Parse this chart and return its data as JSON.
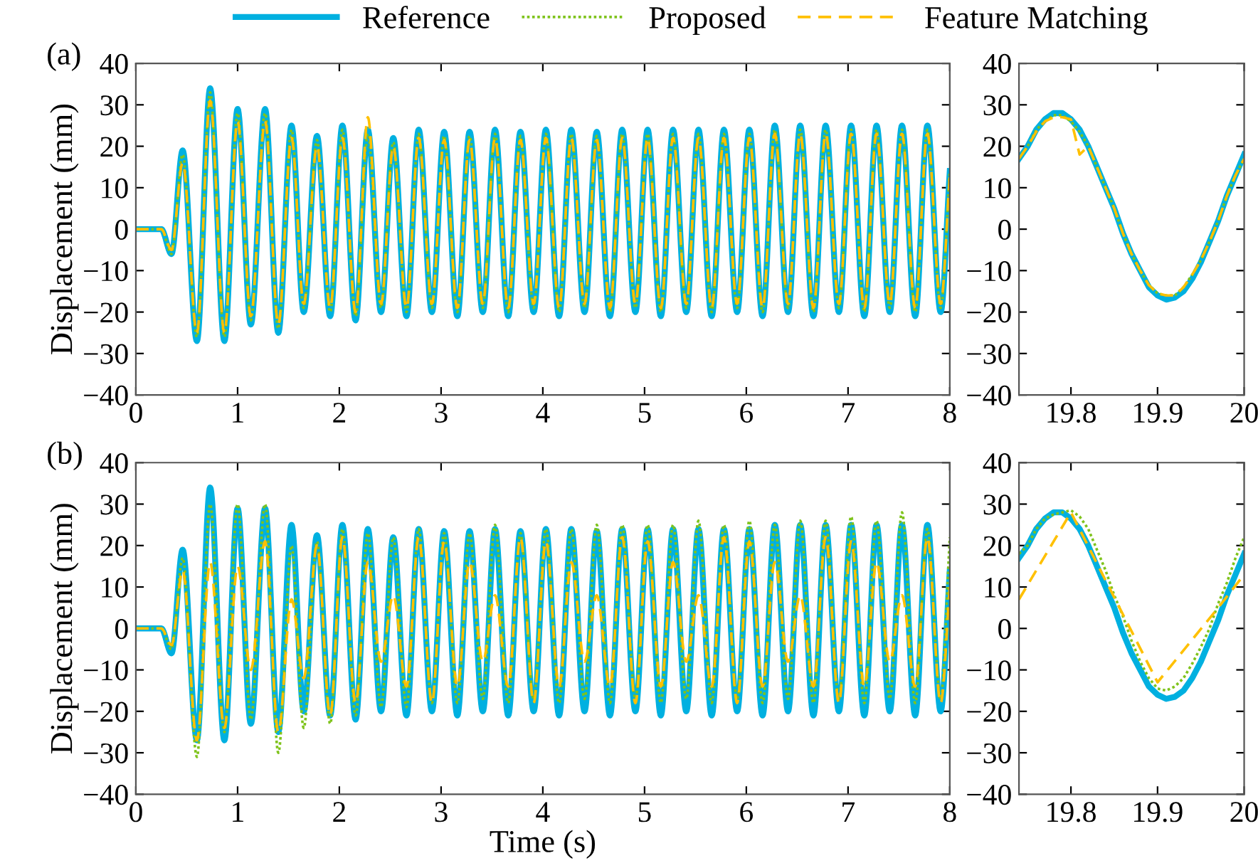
{
  "chart_data": [
    {
      "type": "line",
      "ylabel": "Displacement (mm)",
      "annotations": [
        "(a)"
      ],
      "legend": "top",
      "grid": false,
      "xlim": [
        0,
        8
      ],
      "xticks": [
        0,
        1,
        2,
        3,
        4,
        5,
        6,
        7,
        8
      ],
      "ylim": [
        -40,
        40
      ],
      "yticks": [
        -40,
        -30,
        -20,
        -10,
        0,
        10,
        20,
        30,
        40
      ],
      "x": [
        0,
        0.25,
        0.35,
        0.46,
        0.6,
        0.73,
        0.87,
        1.0,
        1.13,
        1.27,
        1.4,
        1.53,
        1.65,
        1.78,
        1.91,
        2.03,
        2.16,
        2.28,
        2.41,
        2.53,
        2.66,
        2.78,
        2.91,
        3.03,
        3.16,
        3.28,
        3.41,
        3.53,
        3.66,
        3.78,
        3.91,
        4.03,
        4.16,
        4.28,
        4.41,
        4.53,
        4.66,
        4.78,
        4.91,
        5.03,
        5.16,
        5.28,
        5.41,
        5.53,
        5.66,
        5.78,
        5.91,
        6.03,
        6.16,
        6.28,
        6.41,
        6.53,
        6.66,
        6.78,
        6.91,
        7.03,
        7.16,
        7.28,
        7.41,
        7.53,
        7.66,
        7.78,
        7.91,
        8.0
      ],
      "series": [
        {
          "name": "Reference",
          "color": "#00b0e0",
          "line_style": "solid",
          "values": [
            0,
            0,
            -6,
            19,
            -27,
            34,
            -27,
            29,
            -23,
            29,
            -25,
            25,
            -20,
            22.5,
            -21,
            25,
            -22,
            24,
            -20,
            22,
            -21,
            24,
            -20,
            23.5,
            -21,
            23.5,
            -20,
            24,
            -21,
            23.5,
            -20,
            24,
            -21,
            24,
            -20,
            23.5,
            -21,
            24,
            -20,
            24,
            -21,
            24,
            -20,
            24,
            -21,
            24,
            -20,
            24,
            -21,
            25,
            -20,
            25,
            -21,
            25,
            -20,
            25,
            -21,
            25,
            -20,
            25,
            -21,
            25,
            -20,
            14
          ]
        },
        {
          "name": "Proposed",
          "color": "#7fc31c",
          "line_style": "dotted",
          "values": [
            0,
            0,
            -6,
            18,
            -26,
            33,
            -26,
            28,
            -22,
            28,
            -24,
            24,
            -19,
            21.5,
            -20,
            24,
            -21,
            23,
            -19,
            21,
            -20,
            23,
            -19,
            22.5,
            -20,
            22.5,
            -19,
            23,
            -20,
            22.5,
            -19,
            23,
            -20,
            23,
            -19,
            22.5,
            -20,
            23,
            -19,
            23,
            -20,
            23,
            -19,
            23,
            -20,
            23,
            -19,
            23,
            -20,
            24,
            -19,
            24,
            -20,
            24,
            -19,
            24,
            -20,
            24,
            -19,
            24,
            -20,
            24,
            -19,
            14
          ]
        },
        {
          "name": "Feature Matching",
          "color": "#ffc000",
          "line_style": "dashed",
          "values": [
            0,
            0,
            -5,
            16,
            -25,
            31,
            -25,
            26,
            -21,
            26,
            -23,
            22,
            -18,
            20,
            -19,
            22,
            -20,
            27,
            -18,
            20,
            -19,
            22,
            -18,
            21.5,
            -19,
            21.5,
            -18,
            22,
            -19,
            21.5,
            -18,
            22,
            -19,
            22,
            -18,
            21.5,
            -19,
            22,
            -18,
            22,
            -19,
            22,
            -18,
            22,
            -19,
            22,
            -18,
            22,
            -19,
            23,
            -18,
            23,
            -19,
            23,
            -18,
            23,
            -19,
            23,
            -18,
            23,
            -19,
            23,
            -18,
            13
          ]
        }
      ]
    },
    {
      "type": "line",
      "grid": false,
      "xlim": [
        19.74,
        20
      ],
      "xticks": [
        19.8,
        19.9,
        20
      ],
      "ylim": [
        -40,
        40
      ],
      "yticks": [
        -40,
        -30,
        -20,
        -10,
        0,
        10,
        20,
        30,
        40
      ],
      "series": [
        {
          "color": "#00b0e0",
          "line_style": "solid",
          "x": [
            19.74,
            19.75,
            19.76,
            19.77,
            19.78,
            19.79,
            19.8,
            19.81,
            19.82,
            19.83,
            19.84,
            19.85,
            19.86,
            19.87,
            19.88,
            19.89,
            19.9,
            19.91,
            19.92,
            19.93,
            19.94,
            19.95,
            19.96,
            19.97,
            19.98,
            19.99,
            20.0
          ],
          "values": [
            17,
            20,
            24,
            26.5,
            28,
            28,
            26.5,
            24,
            20,
            15,
            10,
            5,
            -1,
            -6,
            -10,
            -14,
            -16,
            -17,
            -16.5,
            -15,
            -12,
            -8,
            -3,
            2,
            8,
            13,
            18
          ]
        },
        {
          "color": "#7fc31c",
          "line_style": "dotted",
          "x": [
            19.74,
            19.75,
            19.76,
            19.77,
            19.78,
            19.79,
            19.8,
            19.81,
            19.82,
            19.83,
            19.84,
            19.85,
            19.86,
            19.87,
            19.88,
            19.89,
            19.9,
            19.91,
            19.92,
            19.93,
            19.94,
            19.95,
            19.96,
            19.97,
            19.98,
            19.99,
            20.0
          ],
          "values": [
            17,
            20,
            24,
            26,
            27.5,
            27.5,
            26,
            23.5,
            20,
            15,
            10,
            5,
            -1,
            -6,
            -10,
            -13.5,
            -15.5,
            -16,
            -16,
            -14,
            -11,
            -7.5,
            -3,
            2,
            8,
            13,
            17
          ]
        },
        {
          "color": "#ffc000",
          "line_style": "dashed",
          "x": [
            19.74,
            19.75,
            19.76,
            19.77,
            19.78,
            19.79,
            19.8,
            19.81,
            19.82,
            19.83,
            19.84,
            19.85,
            19.86,
            19.87,
            19.88,
            19.89,
            19.9,
            19.91,
            19.92,
            19.93,
            19.94,
            19.95,
            19.96,
            19.97,
            19.98,
            19.99,
            20.0
          ],
          "values": [
            17,
            20,
            23.5,
            26,
            27,
            27,
            26.5,
            18,
            20,
            15,
            10,
            5,
            -1,
            -6,
            -10,
            -13.5,
            -15.5,
            -16,
            -16,
            -14,
            -11,
            -7.5,
            -3,
            2,
            8,
            13,
            17
          ]
        }
      ]
    },
    {
      "type": "line",
      "ylabel": "Displacement (mm)",
      "xlabel": "Time (s)",
      "annotations": [
        "(b)"
      ],
      "grid": false,
      "xlim": [
        0,
        8
      ],
      "xticks": [
        0,
        1,
        2,
        3,
        4,
        5,
        6,
        7,
        8
      ],
      "ylim": [
        -40,
        40
      ],
      "yticks": [
        -40,
        -30,
        -20,
        -10,
        0,
        10,
        20,
        30,
        40
      ],
      "x": [
        0,
        0.25,
        0.35,
        0.46,
        0.6,
        0.73,
        0.87,
        1.0,
        1.13,
        1.27,
        1.4,
        1.53,
        1.65,
        1.78,
        1.91,
        2.03,
        2.16,
        2.28,
        2.41,
        2.53,
        2.66,
        2.78,
        2.91,
        3.03,
        3.16,
        3.28,
        3.41,
        3.53,
        3.66,
        3.78,
        3.91,
        4.03,
        4.16,
        4.28,
        4.41,
        4.53,
        4.66,
        4.78,
        4.91,
        5.03,
        5.16,
        5.28,
        5.41,
        5.53,
        5.66,
        5.78,
        5.91,
        6.03,
        6.16,
        6.28,
        6.41,
        6.53,
        6.66,
        6.78,
        6.91,
        7.03,
        7.16,
        7.28,
        7.41,
        7.53,
        7.66,
        7.78,
        7.91,
        8.0
      ],
      "series": [
        {
          "color": "#00b0e0",
          "line_style": "solid",
          "values": [
            0,
            0,
            -6,
            19,
            -27,
            34,
            -27,
            29,
            -23,
            29,
            -25,
            25,
            -20,
            22.5,
            -21,
            25,
            -22,
            24,
            -20,
            22,
            -21,
            24,
            -20,
            23.5,
            -21,
            23.5,
            -20,
            24,
            -21,
            23.5,
            -20,
            24,
            -21,
            24,
            -20,
            23.5,
            -21,
            24,
            -20,
            24,
            -21,
            24,
            -20,
            24,
            -21,
            24,
            -20,
            24,
            -21,
            25,
            -20,
            25,
            -21,
            25,
            -20,
            25,
            -21,
            25,
            -20,
            25,
            -21,
            25,
            -20,
            14
          ]
        },
        {
          "color": "#7fc31c",
          "line_style": "dotted",
          "values": [
            0,
            0,
            -5,
            17,
            -31,
            30,
            -25,
            30,
            -22,
            30,
            -30,
            20,
            -24,
            21,
            -23,
            24,
            -21,
            23,
            -19,
            22,
            -19,
            24,
            -18,
            23,
            -18,
            23,
            -17,
            25,
            -18,
            23,
            -17,
            24,
            -18,
            24,
            -17,
            25,
            -18,
            25,
            -17,
            25,
            -18,
            25,
            -17,
            26,
            -18,
            25,
            -17,
            26,
            -18,
            25,
            -17,
            26,
            -18,
            26,
            -17,
            27,
            -18,
            26,
            -17,
            28,
            -18,
            24,
            -17,
            22
          ]
        },
        {
          "color": "#ffc000",
          "line_style": "dashed",
          "values": [
            0,
            0,
            -4,
            14,
            -27,
            16,
            -24,
            15,
            -10,
            21,
            -25,
            7,
            -12,
            20,
            -21,
            22,
            -18,
            16,
            -8,
            8,
            -14,
            22,
            -18,
            21,
            -14,
            16,
            -8,
            8,
            -14,
            22,
            -18,
            21,
            -14,
            16,
            -8,
            8,
            -14,
            22,
            -18,
            21,
            -14,
            16,
            -8,
            8,
            -14,
            22,
            -18,
            21,
            -14,
            16,
            -8,
            8,
            -14,
            22,
            -18,
            21,
            -14,
            16,
            -8,
            8,
            -14,
            22,
            -18,
            10
          ]
        }
      ]
    },
    {
      "type": "line",
      "grid": false,
      "xlim": [
        19.74,
        20
      ],
      "xticks": [
        19.8,
        19.9,
        20
      ],
      "ylim": [
        -40,
        40
      ],
      "yticks": [
        -40,
        -30,
        -20,
        -10,
        0,
        10,
        20,
        30,
        40
      ],
      "series": [
        {
          "color": "#00b0e0",
          "line_style": "solid",
          "x": [
            19.74,
            19.75,
            19.76,
            19.77,
            19.78,
            19.79,
            19.8,
            19.81,
            19.82,
            19.83,
            19.84,
            19.85,
            19.86,
            19.87,
            19.88,
            19.89,
            19.9,
            19.91,
            19.92,
            19.93,
            19.94,
            19.95,
            19.96,
            19.97,
            19.98,
            19.99,
            20.0
          ],
          "values": [
            17,
            20,
            24,
            26.5,
            28,
            28,
            26.5,
            24,
            20,
            15,
            10,
            5,
            -1,
            -6,
            -10,
            -14,
            -16,
            -17,
            -16.5,
            -15,
            -12,
            -8,
            -3,
            2,
            8,
            13,
            18
          ]
        },
        {
          "color": "#7fc31c",
          "line_style": "dotted",
          "x": [
            19.74,
            19.75,
            19.76,
            19.77,
            19.78,
            19.79,
            19.8,
            19.81,
            19.82,
            19.83,
            19.84,
            19.85,
            19.86,
            19.87,
            19.88,
            19.89,
            19.9,
            19.91,
            19.92,
            19.93,
            19.94,
            19.95,
            19.96,
            19.97,
            19.98,
            19.99,
            20.0
          ],
          "values": [
            18,
            20,
            24,
            26.5,
            27.5,
            28,
            28.5,
            27,
            24,
            19,
            14,
            8,
            3,
            -3,
            -8,
            -12,
            -14.5,
            -15,
            -14,
            -12,
            -8.5,
            -4.5,
            0,
            6,
            11,
            17,
            22
          ]
        },
        {
          "color": "#ffc000",
          "line_style": "dashed",
          "x": [
            19.74,
            19.8,
            19.9,
            19.97,
            20.0
          ],
          "values": [
            7,
            28,
            -13,
            5,
            13
          ]
        }
      ]
    }
  ]
}
